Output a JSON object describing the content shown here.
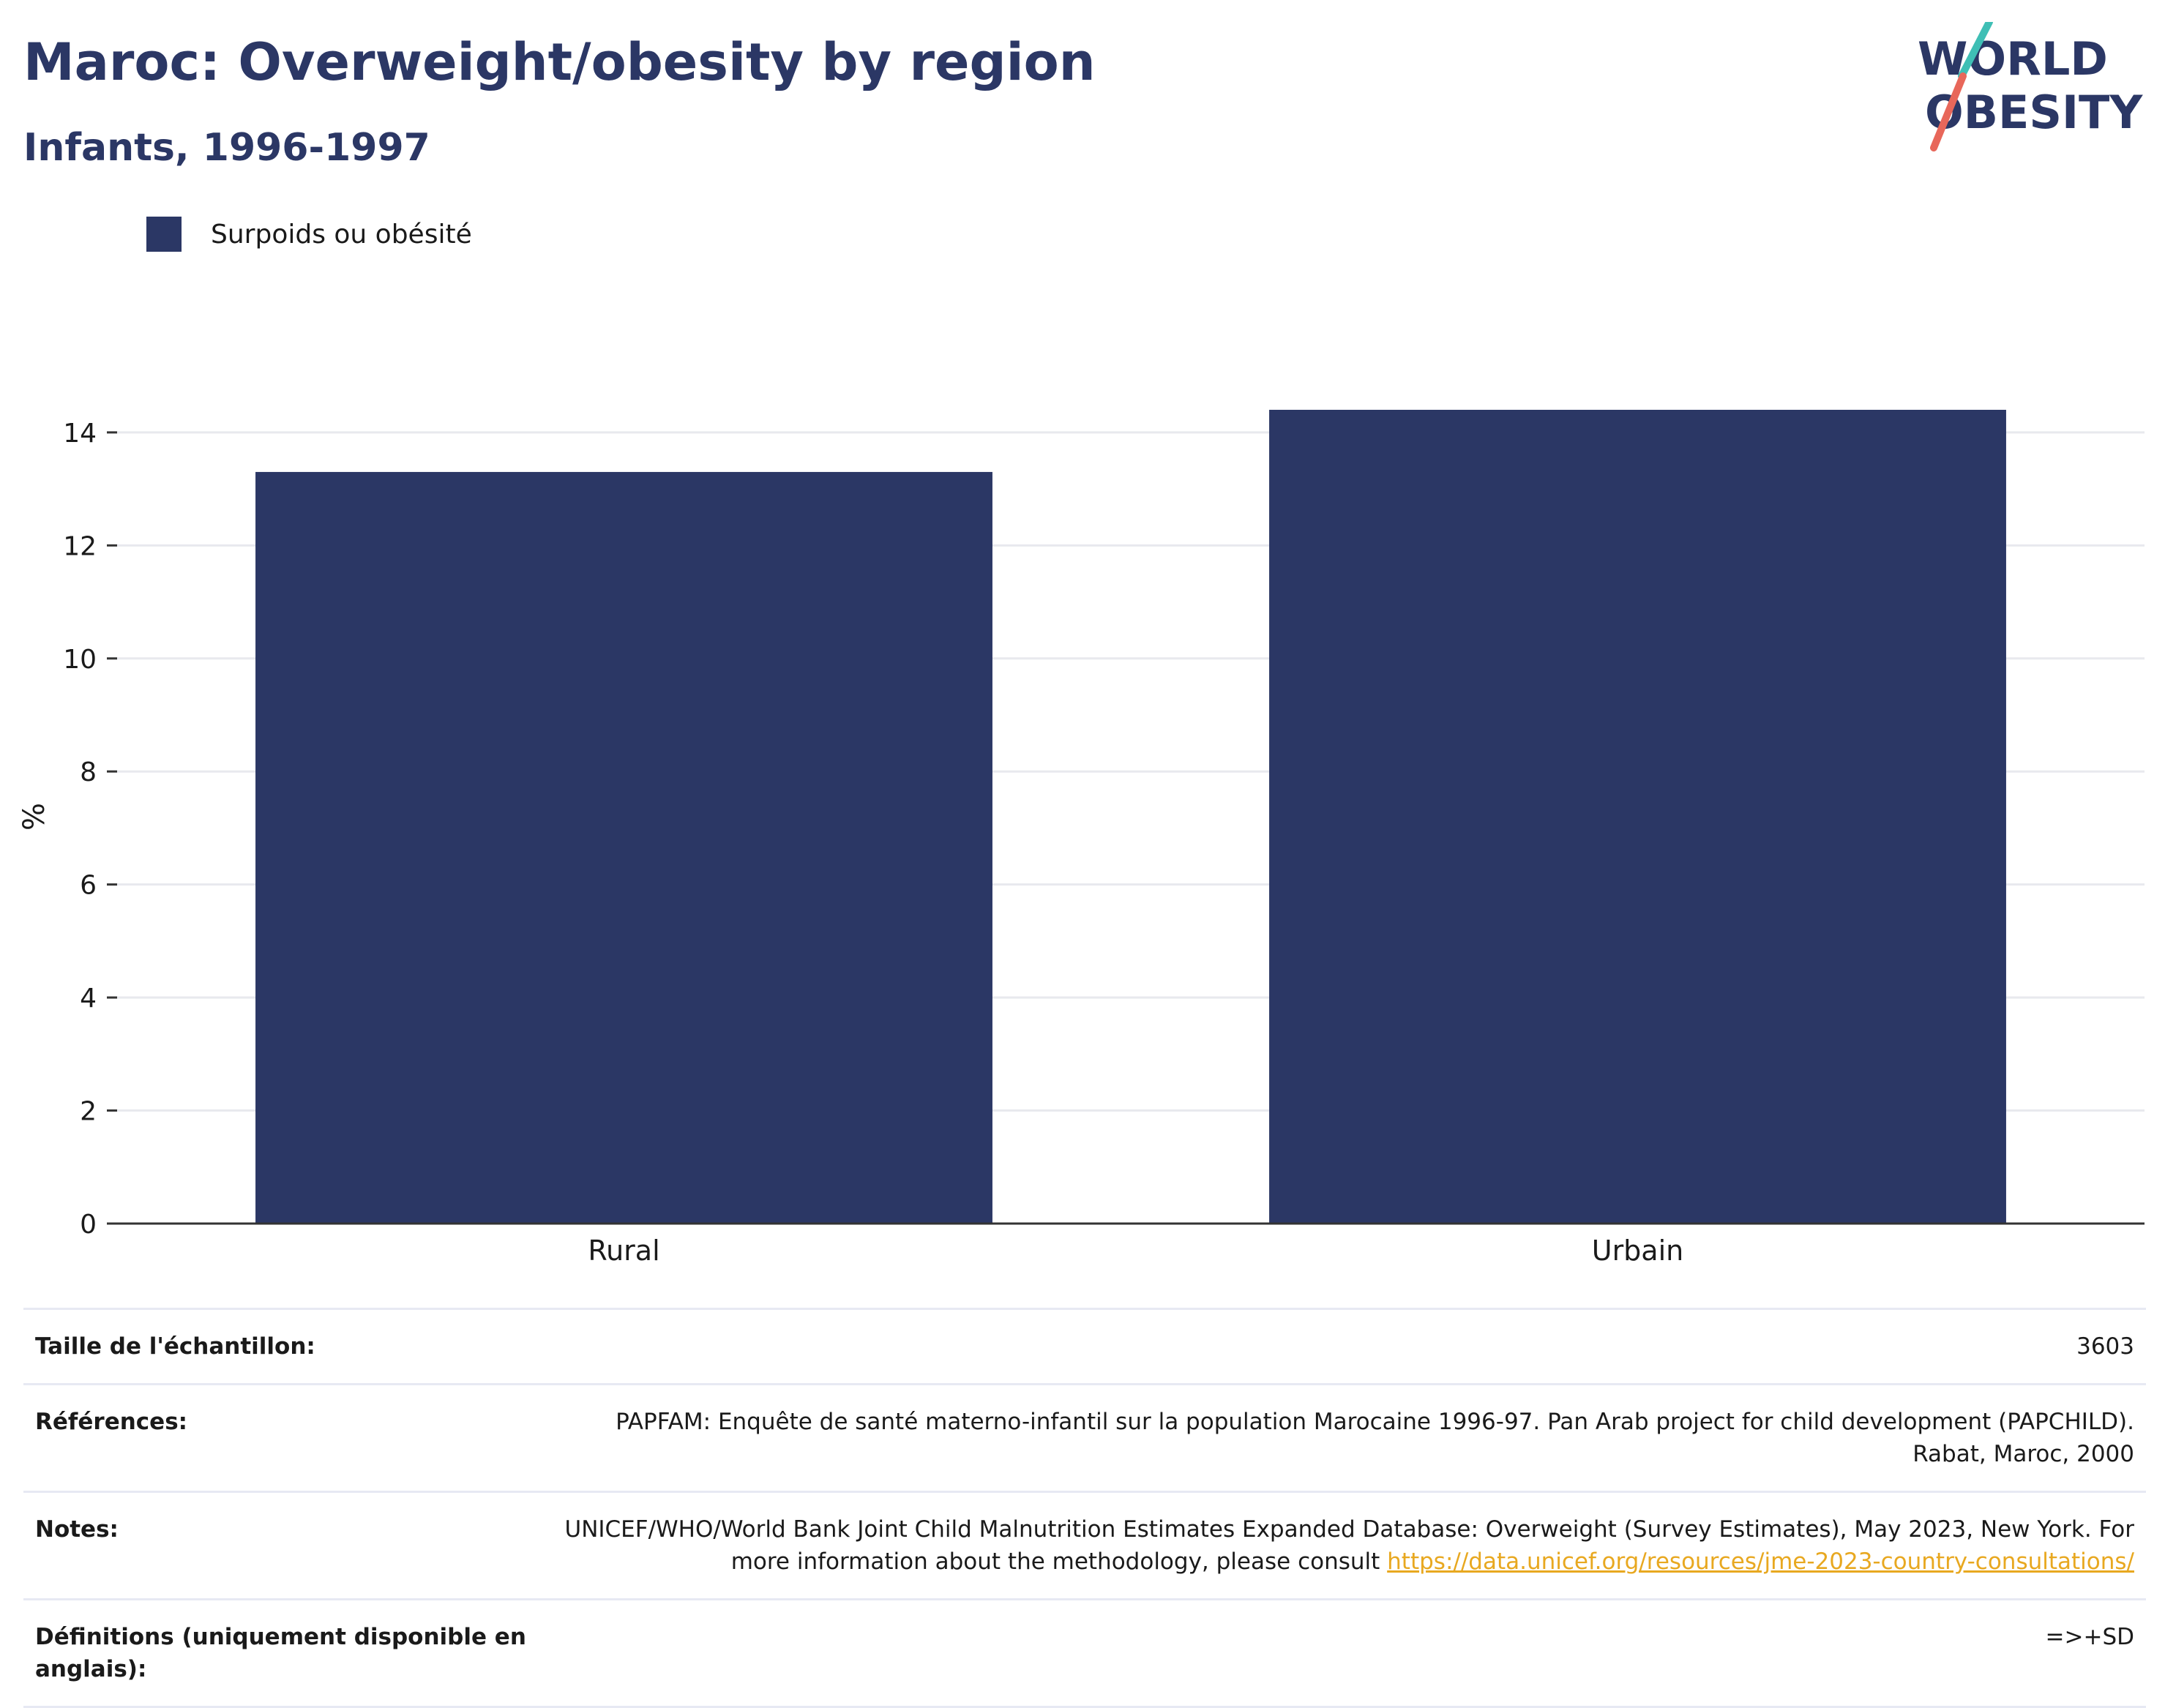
{
  "header": {
    "title": "Maroc: Overweight/obesity by region",
    "subtitle": "Infants, 1996-1997"
  },
  "logo": {
    "line1": "WORLD",
    "line2": "OBESITY"
  },
  "legend": {
    "label": "Surpoids ou obésité",
    "color": "#2b3765"
  },
  "chart_data": {
    "type": "bar",
    "categories": [
      "Rural",
      "Urbain"
    ],
    "series": [
      {
        "name": "Surpoids ou obésité",
        "values": [
          13.3,
          14.4
        ]
      }
    ],
    "ylabel": "%",
    "xlabel": "",
    "ylim": [
      0,
      14.4
    ],
    "yticks": [
      0,
      2,
      4,
      6,
      8,
      10,
      12,
      14
    ],
    "grid": true,
    "legend_position": "top-left",
    "bar_color": "#2b3765"
  },
  "info": {
    "sample": {
      "key": "Taille de l'échantillon:",
      "value": "3603"
    },
    "references": {
      "key": "Références:",
      "value": "PAPFAM: Enquête de santé materno-infantil sur la population Marocaine 1996-97. Pan Arab project for child development (PAPCHILD). Rabat, Maroc, 2000"
    },
    "notes": {
      "key": "Notes:",
      "value": "UNICEF/WHO/World Bank Joint Child Malnutrition Estimates Expanded Database: Overweight (Survey Estimates), May 2023, New York. For more information about the methodology, please consult ",
      "link": "https://data.unicef.org/resources/jme-2023-country-consultations/"
    },
    "definitions": {
      "key": "Définitions (uniquement disponible en anglais):",
      "value": "=>+SD"
    }
  }
}
